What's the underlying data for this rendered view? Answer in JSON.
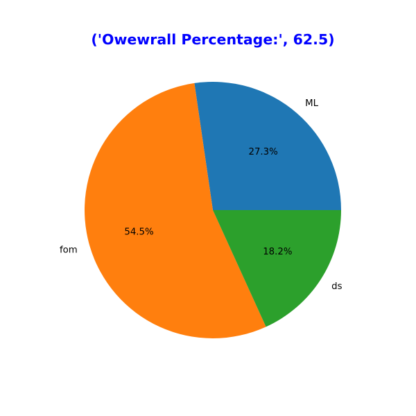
{
  "chart_data": {
    "type": "pie",
    "title": "('Owewrall Percentage:', 62.5)",
    "title_color": "#0000ff",
    "labels": [
      "ML",
      "fom",
      "ds"
    ],
    "values": [
      27.3,
      54.5,
      18.2
    ],
    "percent_labels": [
      "27.3%",
      "54.5%",
      "18.2%"
    ],
    "colors": [
      "#1f77b4",
      "#ff7f0e",
      "#2ca02c"
    ],
    "start_angle_deg": 0,
    "direction": "counterclockwise"
  }
}
